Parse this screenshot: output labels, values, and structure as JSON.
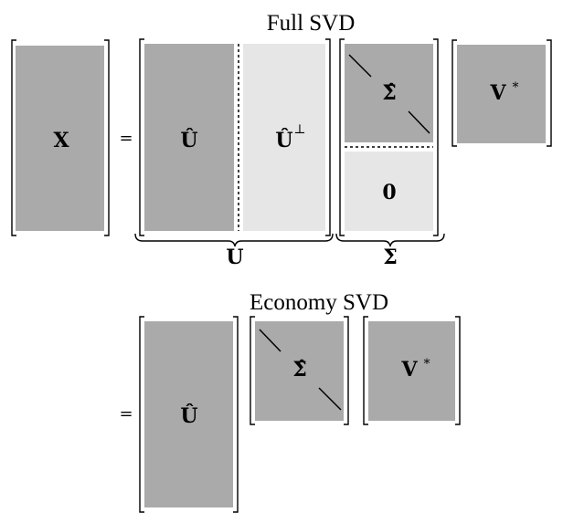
{
  "full_svd": {
    "title": "Full SVD",
    "equals": "=",
    "x_label": "X",
    "u_hat_label": "Û",
    "u_perp_label": "Û",
    "u_perp_sup": "⊥",
    "sigma_hat_label": "Σ̂",
    "zero_label": "0",
    "v_label": "V",
    "v_sup": "*",
    "u_brace_label": "U",
    "sigma_brace_label": "Σ"
  },
  "economy_svd": {
    "title": "Economy SVD",
    "equals": "=",
    "u_hat_label": "Û",
    "sigma_hat_label": "Σ̂",
    "v_label": "V",
    "v_sup": "*"
  },
  "colors": {
    "dark_block": "#aaaaaa",
    "light_block": "#e6e6e6"
  }
}
